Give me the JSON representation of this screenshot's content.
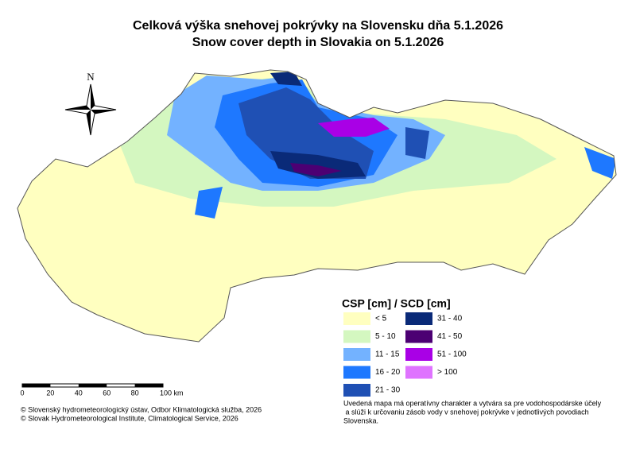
{
  "title": {
    "sk": "Celková výška snehovej pokrývky na Slovensku dňa 5.1.2026",
    "en": "Snow cover depth in Slovakia on 5.1.2026"
  },
  "north": "N",
  "legend": {
    "title": "CSP [cm] / SCD [cm]",
    "classes": [
      {
        "label": "< 5",
        "color": "#ffffc0"
      },
      {
        "label": "5 - 10",
        "color": "#d4f7c0"
      },
      {
        "label": "11 - 15",
        "color": "#73b2ff"
      },
      {
        "label": "16 - 20",
        "color": "#1e78ff"
      },
      {
        "label": "21 - 30",
        "color": "#1f50b4"
      },
      {
        "label": "31 - 40",
        "color": "#0a2a78"
      },
      {
        "label": "41 - 50",
        "color": "#4c0073"
      },
      {
        "label": "51 - 100",
        "color": "#a900e6"
      },
      {
        "label": "> 100",
        "color": "#df73ff"
      }
    ]
  },
  "scale_bar": {
    "labels": [
      "0",
      "20",
      "40",
      "60",
      "80",
      "100 km"
    ]
  },
  "credits": [
    "© Slovenský hydrometeorologický ústav, Odbor Klimatologická služba, 2026",
    "© Slovak Hydrometeorological Institute, Climatological Service, 2026"
  ],
  "note": [
    "Uvedená mapa má operatívny charakter a vytvára sa pre vodohospodárske účely",
    " a slúži k určovaniu zásob vody v snehovej pokrývke v jednotlivých povodiach",
    "Slovenska."
  ]
}
